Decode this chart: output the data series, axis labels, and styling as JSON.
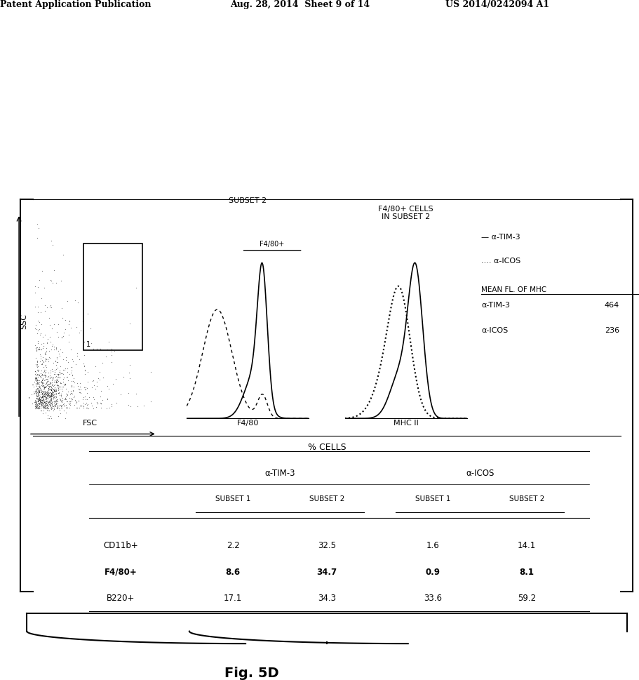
{
  "header_left": "Patent Application Publication",
  "header_mid": "Aug. 28, 2014  Sheet 9 of 14",
  "header_right": "US 2014/0242094 A1",
  "fig_label": "Fig. 5D",
  "scatter_xlabel": "FSC",
  "scatter_ylabel": "SSC",
  "hist1_title": "SUBSET 2",
  "hist1_xlabel": "F4/80",
  "hist1_gate_label": "F4/80+",
  "hist2_title": "F4/80+ CELLS\nIN SUBSET 2",
  "hist2_xlabel": "MHC II",
  "legend_solid": "— α-TIM-3",
  "legend_dotted": ".... α-ICOS",
  "mean_fl_title": "MEAN FL. OF MHC",
  "mean_fl_rows": [
    [
      "α-TIM-3",
      "464"
    ],
    [
      "α-ICOS",
      "236"
    ]
  ],
  "table_title": "% CELLS",
  "table_col_groups": [
    "α-TIM-3",
    "α-ICOS"
  ],
  "table_sub_cols": [
    "SUBSET 1",
    "SUBSET 2",
    "SUBSET 1",
    "SUBSET 2"
  ],
  "table_row_labels": [
    "CD11b+",
    "F4/80+",
    "B220+"
  ],
  "table_data": [
    [
      "2.2",
      "32.5",
      "1.6",
      "14.1"
    ],
    [
      "8.6",
      "34.7",
      "0.9",
      "8.1"
    ],
    [
      "17.1",
      "34.3",
      "33.6",
      "59.2"
    ]
  ],
  "table_bold_cells": [
    [
      1,
      1
    ],
    [
      1,
      3
    ]
  ],
  "table_bold_rows": [
    1
  ],
  "bg_color": "#ffffff"
}
